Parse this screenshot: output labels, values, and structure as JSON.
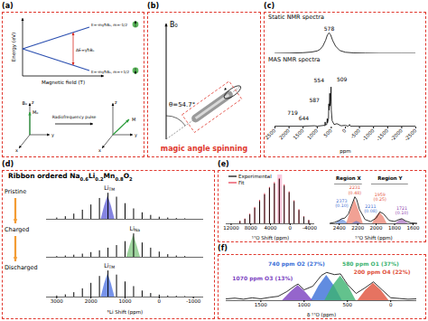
{
  "diagrams": {
    "a": {
      "panel_label": "(a)",
      "energy_axis": "Energy (eV)",
      "field_axis": "Magnetic field (T)",
      "upper_level": "E=-mγħB₀, m=-1/2",
      "lower_level": "E=-mγħB₀, m=+1/2",
      "gap": "ΔE=γħB₀",
      "pulse": "Radiofrequency pulse",
      "left_frame": {
        "field": "B₀",
        "z": "z",
        "moment": "M₀",
        "x": "x",
        "y": "y"
      },
      "right_frame": {
        "z": "z",
        "moment": "M",
        "x": "x",
        "y": "y"
      }
    },
    "b": {
      "panel_label": "(b)",
      "field": "B₀",
      "angle": "θ=54.7°",
      "caption": "magic angle spinning"
    }
  },
  "chart_data": [
    {
      "panel_label": "(c)",
      "type": "line",
      "series": [
        {
          "name": "Static NMR spectra",
          "color": "#000000",
          "x": [
            2500,
            2000,
            1500,
            1200,
            1000,
            900,
            800,
            700,
            640,
            578,
            520,
            450,
            350,
            200,
            0,
            -300,
            -700,
            -1200,
            -2000,
            -2500
          ],
          "values": [
            0.02,
            0.03,
            0.05,
            0.08,
            0.13,
            0.2,
            0.35,
            0.62,
            0.85,
            0.95,
            0.85,
            0.6,
            0.35,
            0.15,
            0.07,
            0.04,
            0.03,
            0.02,
            0.02,
            0.02
          ]
        }
      ],
      "annotations": [
        {
          "x": 578,
          "y": 0.95,
          "label": "578"
        }
      ],
      "xlim": [
        2500,
        -2500
      ],
      "ylim": [
        0,
        1.15
      ],
      "tick_labels": false
    },
    {
      "type": "line",
      "series": [
        {
          "name": "MAS NMR spectra",
          "color": "#000000",
          "x": [
            2500,
            1500,
            1100,
            1000,
            750,
            725,
            719,
            712,
            660,
            644,
            635,
            600,
            587,
            575,
            560,
            554,
            545,
            520,
            509,
            500,
            470,
            400,
            300,
            150,
            0,
            -100,
            -150,
            -180,
            -500,
            -1000,
            -2500
          ],
          "values": [
            0.02,
            0.02,
            0.03,
            0.02,
            0.04,
            0.03,
            0.12,
            0.05,
            0.06,
            0.2,
            0.1,
            0.2,
            0.55,
            0.4,
            0.65,
            0.8,
            0.5,
            0.6,
            0.95,
            0.4,
            0.15,
            0.06,
            0.08,
            0.03,
            0.04,
            0.02,
            0.06,
            0.02,
            0.02,
            0.02,
            0.02
          ]
        }
      ],
      "annotations": [
        {
          "x": 554,
          "y": 0.8,
          "label": "554"
        },
        {
          "x": 509,
          "y": 0.95,
          "label": "509"
        },
        {
          "x": 587,
          "y": 0.55,
          "label": "587"
        },
        {
          "x": 644,
          "y": 0.2,
          "label": "644"
        },
        {
          "x": 719,
          "y": 0.12,
          "label": "719"
        }
      ],
      "xlabel": "ppm",
      "xlim": [
        2500,
        -2500
      ],
      "xticks": [
        2500,
        2000,
        1500,
        1000,
        500,
        0,
        -500,
        -1000,
        -1500,
        -2000,
        -2500
      ],
      "ylim": [
        0,
        1.2
      ],
      "tick_labels": "x"
    },
    {
      "panel_label": "(d)",
      "type": "spectrum",
      "title_parts": [
        {
          "text": "Ribbon ordered Na"
        },
        {
          "sub": "0.6"
        },
        {
          "text": "Li"
        },
        {
          "sub": "0.2"
        },
        {
          "text": "Mn"
        },
        {
          "sub": "0.8"
        },
        {
          "text": "O"
        },
        {
          "sub": "2"
        }
      ],
      "xlabel": "⁶Li Shift (ppm)",
      "xlim": [
        3300,
        -1300
      ],
      "xticks": [
        3000,
        2000,
        1000,
        0,
        -1000
      ],
      "ylim": [
        0,
        1.25
      ],
      "tick_labels": "x",
      "spectra": [
        {
          "name": "Pristine",
          "color": "#000000",
          "x": [
            3000,
            2750,
            2500,
            2250,
            2000,
            1750,
            1500,
            1250,
            1000,
            750,
            500,
            250,
            0,
            -250,
            -500,
            -750
          ],
          "values": [
            0.05,
            0.1,
            0.2,
            0.35,
            0.55,
            0.8,
            1.0,
            0.85,
            0.6,
            0.4,
            0.25,
            0.15,
            0.08,
            0.05,
            0.03,
            0.02
          ],
          "component": {
            "color": "#5b5bd6",
            "x": [
              1700,
              1600,
              1500,
              1400,
              1300
            ],
            "values": [
              0,
              0.5,
              0.9,
              0.5,
              0
            ],
            "label": "Li",
            "label_sub": "TM"
          }
        },
        {
          "name": "Charged",
          "color": "#000000",
          "x": [
            3000,
            2750,
            2500,
            2250,
            2000,
            1750,
            1500,
            1250,
            1000,
            750,
            500,
            250,
            0,
            -250,
            -500,
            -750
          ],
          "values": [
            0.03,
            0.05,
            0.08,
            0.12,
            0.18,
            0.25,
            0.35,
            0.45,
            0.6,
            0.9,
            0.55,
            0.35,
            0.2,
            0.1,
            0.05,
            0.03
          ],
          "component": {
            "color": "#7cc47c",
            "x": [
              950,
              850,
              750,
              650,
              550
            ],
            "values": [
              0,
              0.45,
              0.85,
              0.45,
              0
            ],
            "label": "Li",
            "label_sub": "Na"
          }
        },
        {
          "name": "Discharged",
          "color": "#000000",
          "x": [
            3000,
            2750,
            2500,
            2250,
            2000,
            1750,
            1500,
            1250,
            1000,
            750,
            500,
            250,
            0,
            -250,
            -500,
            -750
          ],
          "values": [
            0.04,
            0.08,
            0.16,
            0.3,
            0.5,
            0.75,
            0.95,
            0.8,
            0.55,
            0.38,
            0.22,
            0.13,
            0.07,
            0.04,
            0.03,
            0.02
          ],
          "component": {
            "color": "#4a6fe3",
            "x": [
              1700,
              1600,
              1500,
              1400,
              1300
            ],
            "values": [
              0,
              0.48,
              0.85,
              0.48,
              0
            ],
            "label": "Li",
            "label_sub": "TM"
          }
        }
      ]
    },
    {
      "panel_label": "(e)",
      "type": "spectrum",
      "series": [
        {
          "name": "Experimental",
          "color": "#000000",
          "x": [
            10200,
            9200,
            8200,
            7200,
            6200,
            5200,
            4200,
            3200,
            2200,
            1200,
            200,
            -800,
            -1800,
            -2800,
            -3800
          ],
          "values": [
            0.05,
            0.1,
            0.2,
            0.35,
            0.5,
            0.65,
            0.8,
            0.9,
            1.0,
            0.85,
            0.7,
            0.5,
            0.3,
            0.15,
            0.07
          ]
        },
        {
          "name": "Fit",
          "color": "#e8344a",
          "x": [
            10200,
            9200,
            8200,
            7200,
            6200,
            5200,
            4200,
            3200,
            2200,
            1200,
            200,
            -800,
            -1800,
            -2800,
            -3800
          ],
          "values": [
            0.06,
            0.11,
            0.22,
            0.37,
            0.53,
            0.68,
            0.82,
            0.93,
            1.02,
            0.88,
            0.72,
            0.52,
            0.32,
            0.16,
            0.08
          ]
        }
      ],
      "legend": "top-left",
      "xlabel": "¹⁷O Shift (ppm)",
      "xlim": [
        13000,
        -5000
      ],
      "xticks": [
        12000,
        8000,
        4000,
        0,
        -4000
      ],
      "ylim": [
        0,
        1.1
      ],
      "tick_labels": "x"
    },
    {
      "type": "line",
      "color": "#000000",
      "x": [
        2500,
        2450,
        2400,
        2373,
        2340,
        2300,
        2260,
        2231,
        2211,
        2180,
        2120,
        2060,
        2000,
        1959,
        1920,
        1860,
        1800,
        1760,
        1721,
        1680,
        1620,
        1560
      ],
      "values": [
        0.02,
        0.05,
        0.12,
        0.18,
        0.2,
        0.35,
        0.7,
        0.95,
        0.85,
        0.5,
        0.15,
        0.08,
        0.2,
        0.42,
        0.35,
        0.12,
        0.08,
        0.14,
        0.18,
        0.1,
        0.03,
        0.02
      ],
      "components": [
        {
          "label": "2373 (0.10)",
          "color": "#3d6fd1",
          "x": [
            2440,
            2400,
            2373,
            2340,
            2300
          ],
          "values": [
            0,
            0.1,
            0.16,
            0.1,
            0
          ]
        },
        {
          "label": "2231 (0.48)",
          "color": "#e5533d",
          "x": [
            2320,
            2270,
            2231,
            2190,
            2140
          ],
          "values": [
            0,
            0.5,
            0.85,
            0.5,
            0
          ]
        },
        {
          "label": "2211 (0.08)",
          "color": "#3d6fd1",
          "x": [
            2260,
            2235,
            2211,
            2185,
            2160
          ],
          "values": [
            0,
            0.05,
            0.09,
            0.05,
            0
          ]
        },
        {
          "label": "1959 (0.25)",
          "color": "#e5533d",
          "x": [
            2040,
            2000,
            1959,
            1920,
            1880
          ],
          "values": [
            0,
            0.25,
            0.4,
            0.25,
            0
          ]
        },
        {
          "label": "1721 (0.10)",
          "color": "#8e44ad",
          "x": [
            1790,
            1750,
            1721,
            1690,
            1650
          ],
          "values": [
            0,
            0.1,
            0.16,
            0.1,
            0
          ]
        }
      ],
      "regions": [
        {
          "label": "Region X",
          "range": [
            2450,
            2150
          ]
        },
        {
          "label": "Region Y",
          "range": [
            2050,
            1650
          ]
        }
      ],
      "xlabel": "¹⁷O Shift (ppm)",
      "xlim": [
        2500,
        1550
      ],
      "xticks": [
        2400,
        2200,
        2000,
        1800,
        1600
      ],
      "ylim": [
        0,
        1.4
      ],
      "tick_labels": "x"
    },
    {
      "panel_label": "(f)",
      "type": "line",
      "color": "#000000",
      "x": [
        1900,
        1800,
        1700,
        1600,
        1500,
        1400,
        1300,
        1200,
        1100,
        1070,
        1000,
        900,
        800,
        740,
        650,
        580,
        500,
        400,
        300,
        200,
        100,
        0,
        -100,
        -200,
        -300
      ],
      "values": [
        0.05,
        0.07,
        0.04,
        0.08,
        0.05,
        0.09,
        0.12,
        0.25,
        0.42,
        0.46,
        0.3,
        0.4,
        0.7,
        0.78,
        0.72,
        0.74,
        0.45,
        0.2,
        0.35,
        0.52,
        0.3,
        0.08,
        0.06,
        0.04,
        0.05
      ],
      "components": [
        {
          "label": "740 ppm O2 (27%)",
          "color": "#3a6fd8",
          "x": [
            920,
            830,
            740,
            650,
            560
          ],
          "values": [
            0,
            0.4,
            0.7,
            0.4,
            0
          ]
        },
        {
          "label": "580 ppm O1 (37%)",
          "color": "#3cb371",
          "x": [
            760,
            670,
            580,
            490,
            400
          ],
          "values": [
            0,
            0.4,
            0.68,
            0.4,
            0
          ]
        },
        {
          "label": "1070 ppm O3 (13%)",
          "color": "#7b3fbf",
          "x": [
            1250,
            1150,
            1070,
            990,
            900
          ],
          "values": [
            0,
            0.25,
            0.42,
            0.25,
            0
          ]
        },
        {
          "label": "200 ppm O4 (22%)",
          "color": "#e0503a",
          "x": [
            380,
            290,
            200,
            110,
            20
          ],
          "values": [
            0,
            0.28,
            0.48,
            0.28,
            0
          ]
        }
      ],
      "xlabel": "δ ¹⁷O (ppm)",
      "xlim": [
        1900,
        -300
      ],
      "xticks": [
        1500,
        1000,
        500,
        0
      ],
      "ylim": [
        0,
        1.15
      ],
      "tick_labels": "x"
    }
  ]
}
